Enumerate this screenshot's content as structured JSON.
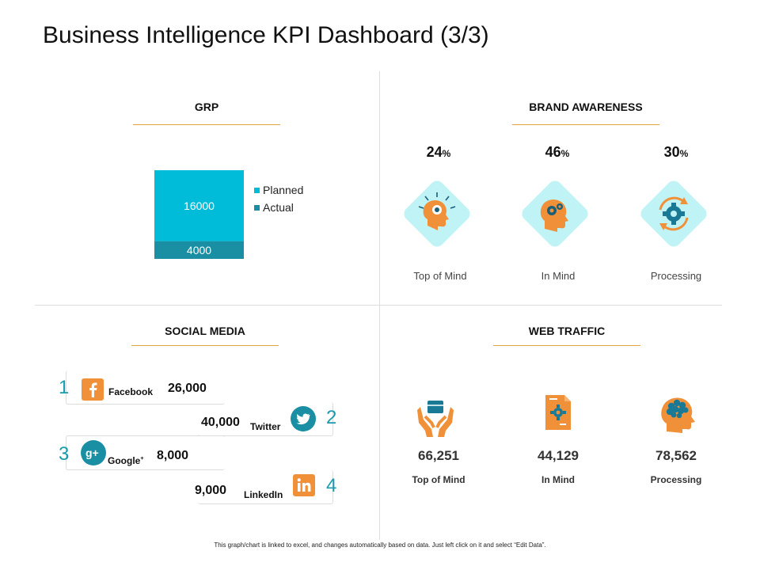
{
  "title": "Business Intelligence KPI Dashboard (3/3)",
  "colors": {
    "accent_line": "#e0a63c",
    "cyan": "#00bcd9",
    "teal": "#1a8fa3",
    "orange": "#f0913a",
    "diamond": "#bff3f6"
  },
  "grp": {
    "section_title": "GRP",
    "chart_data": {
      "type": "bar",
      "categories": [
        ""
      ],
      "series": [
        {
          "name": "Planned",
          "values": [
            16000
          ]
        },
        {
          "name": "Actual",
          "values": [
            4000
          ]
        }
      ],
      "stacked": true,
      "legend": "right"
    }
  },
  "brand": {
    "section_title": "BRAND AWARENESS",
    "items": [
      {
        "value": "24",
        "unit": "%",
        "label": "Top of Mind",
        "icon": "brain-burst-icon"
      },
      {
        "value": "46",
        "unit": "%",
        "label": "In Mind",
        "icon": "head-gears-icon"
      },
      {
        "value": "30",
        "unit": "%",
        "label": "Processing",
        "icon": "gear-cycle-icon"
      }
    ]
  },
  "social": {
    "section_title": "SOCIAL MEDIA",
    "items": [
      {
        "rank": "1",
        "name": "Facebook",
        "value": "26,000",
        "icon": "facebook-icon"
      },
      {
        "rank": "2",
        "name": "Twitter",
        "value": "40,000",
        "icon": "twitter-icon"
      },
      {
        "rank": "3",
        "name": "Google",
        "sup": "+",
        "value": "8,000",
        "icon": "google-plus-icon"
      },
      {
        "rank": "4",
        "name": "LinkedIn",
        "value": "9,000",
        "icon": "linkedin-icon"
      }
    ]
  },
  "web": {
    "section_title": "WEB TRAFFIC",
    "items": [
      {
        "value": "66,251",
        "label": "Top of Mind",
        "icon": "hands-box-icon"
      },
      {
        "value": "44,129",
        "label": "In Mind",
        "icon": "document-gear-icon"
      },
      {
        "value": "78,562",
        "label": "Processing",
        "icon": "head-brain-icon"
      }
    ]
  },
  "footnote": "This graph/chart is linked to excel, and changes automatically based on data. Just left click on it and select “Edit Data”."
}
